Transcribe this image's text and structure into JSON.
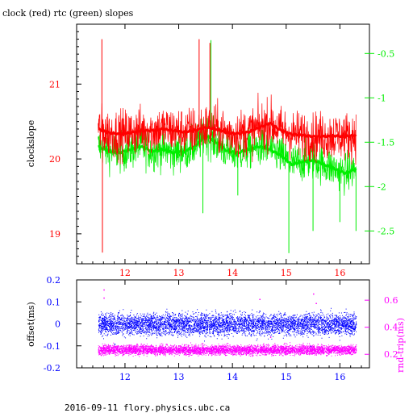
{
  "title": "clock (red) rtc (green) slopes",
  "footer": "2016-09-11 flory.physics.ubc.ca",
  "colors": {
    "red": "#ff0000",
    "green": "#00ee00",
    "blue": "#0000ff",
    "magenta": "#ff00ff",
    "axis": "#000000"
  },
  "chart_data": [
    {
      "type": "line",
      "title": "clock (red) rtc (green) slopes",
      "ylabel": "clockslope",
      "y2label": "",
      "xlim": [
        11.1,
        16.55
      ],
      "ylim": [
        18.6,
        21.8
      ],
      "y2lim": [
        -2.87,
        -0.17
      ],
      "xticks": [
        12,
        13,
        14,
        15,
        16
      ],
      "yticks": [
        19,
        20,
        21
      ],
      "y2ticks": [
        -2.5,
        -2,
        -1.5,
        -1,
        -0.5
      ],
      "grid": false,
      "series": [
        {
          "name": "clock",
          "axis": "left",
          "color": "#ff0000",
          "x": [
            11.5,
            11.7,
            11.9,
            12.1,
            12.3,
            12.5,
            12.7,
            12.9,
            13.1,
            13.3,
            13.5,
            13.7,
            13.9,
            14.1,
            14.3,
            14.5,
            14.7,
            14.9,
            15.1,
            15.3,
            15.5,
            15.7,
            15.9,
            16.1,
            16.3
          ],
          "y": [
            20.4,
            20.35,
            20.33,
            20.35,
            20.38,
            20.38,
            20.4,
            20.38,
            20.36,
            20.38,
            20.42,
            20.4,
            20.35,
            20.34,
            20.36,
            20.42,
            20.48,
            20.38,
            20.33,
            20.32,
            20.3,
            20.3,
            20.31,
            20.3,
            20.32
          ],
          "spikes": [
            [
              11.57,
              21.6
            ],
            [
              11.58,
              18.75
            ],
            [
              13.38,
              21.6
            ],
            [
              13.58,
              21.55
            ]
          ]
        },
        {
          "name": "rtc",
          "axis": "right",
          "color": "#00ee00",
          "x": [
            11.5,
            11.7,
            11.9,
            12.1,
            12.3,
            12.5,
            12.7,
            12.9,
            13.1,
            13.3,
            13.5,
            13.7,
            13.9,
            14.1,
            14.3,
            14.5,
            14.7,
            14.9,
            15.1,
            15.3,
            15.5,
            15.7,
            15.9,
            16.1,
            16.3
          ],
          "y": [
            -1.55,
            -1.6,
            -1.62,
            -1.58,
            -1.55,
            -1.6,
            -1.58,
            -1.62,
            -1.6,
            -1.55,
            -1.42,
            -1.5,
            -1.6,
            -1.62,
            -1.58,
            -1.55,
            -1.58,
            -1.65,
            -1.75,
            -1.72,
            -1.7,
            -1.75,
            -1.8,
            -1.85,
            -1.8
          ],
          "spikes": [
            [
              13.45,
              -2.3
            ],
            [
              13.6,
              -0.35
            ],
            [
              14.1,
              -2.1
            ],
            [
              15.05,
              -2.75
            ],
            [
              15.5,
              -2.5
            ],
            [
              16.0,
              -2.4
            ],
            [
              16.3,
              -2.5
            ]
          ]
        }
      ]
    },
    {
      "type": "scatter",
      "ylabel": "offset(ms)",
      "y2label": "rnd-trip(ms)",
      "xlim": [
        11.1,
        16.55
      ],
      "ylim": [
        -0.2,
        0.2
      ],
      "y2lim": [
        0.1,
        0.75
      ],
      "xticks": [
        12,
        13,
        14,
        15,
        16
      ],
      "yticks": [
        -0.2,
        -0.1,
        0,
        0.1,
        0.2
      ],
      "y2ticks": [
        0.2,
        0.4,
        0.6
      ],
      "grid": false,
      "series": [
        {
          "name": "offset",
          "axis": "left",
          "color": "#0000ff",
          "x_range": [
            11.5,
            16.3
          ],
          "center": 0.0,
          "spread": 0.048,
          "outliers": [
            [
              11.8,
              -0.09
            ],
            [
              13.0,
              0.05
            ],
            [
              14.5,
              0.06
            ],
            [
              15.45,
              -0.1
            ]
          ]
        },
        {
          "name": "rnd-trip",
          "axis": "right",
          "color": "#ff00ff",
          "x_range": [
            11.5,
            16.3
          ],
          "center": 0.235,
          "spread": 0.035,
          "outliers": [
            [
              11.6,
              0.68
            ],
            [
              11.6,
              0.62
            ],
            [
              14.7,
              0.33
            ],
            [
              15.5,
              0.65
            ],
            [
              15.55,
              0.58
            ],
            [
              14.5,
              0.61
            ]
          ]
        }
      ]
    }
  ]
}
